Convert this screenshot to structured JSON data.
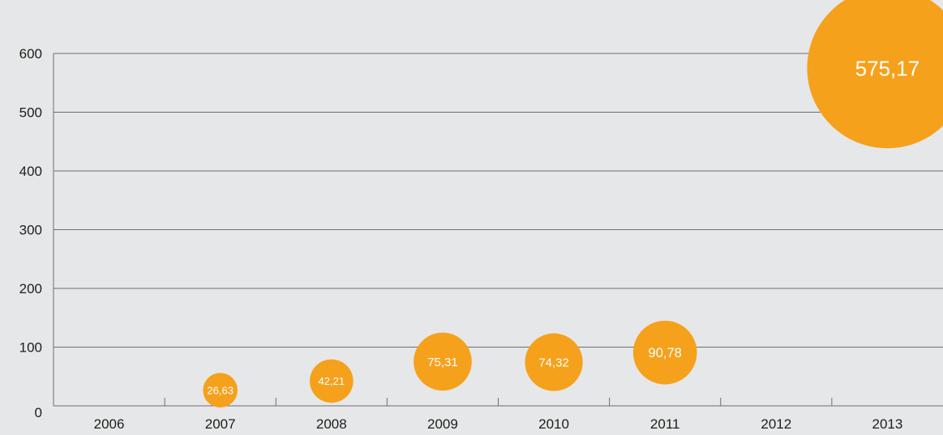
{
  "chart_data": {
    "type": "bubble",
    "title": "",
    "xlabel": "",
    "ylabel": "",
    "categories": [
      "2006",
      "2007",
      "2008",
      "2009",
      "2010",
      "2011",
      "2012",
      "2013"
    ],
    "y_ticks": [
      "0",
      "100",
      "200",
      "300",
      "400",
      "500",
      "600"
    ],
    "ylim": [
      0,
      600
    ],
    "grid": true,
    "legend": "none",
    "points": [
      {
        "x": "2007",
        "y": 26.63,
        "size": 26.63,
        "label": "26,63"
      },
      {
        "x": "2008",
        "y": 42.21,
        "size": 42.21,
        "label": "42,21"
      },
      {
        "x": "2009",
        "y": 75.31,
        "size": 75.31,
        "label": "75,31"
      },
      {
        "x": "2010",
        "y": 74.32,
        "size": 74.32,
        "label": "74,32"
      },
      {
        "x": "2011",
        "y": 90.78,
        "size": 90.78,
        "label": "90,78"
      },
      {
        "x": "2013",
        "y": 575.17,
        "size": 575.17,
        "label": "575,17"
      }
    ],
    "colors": {
      "bubble": "#f5a11c",
      "background": "#e6e7e8",
      "grid": "#6d6e71",
      "text": "#1d1d1b",
      "bubble_text": "#ffffff"
    }
  }
}
